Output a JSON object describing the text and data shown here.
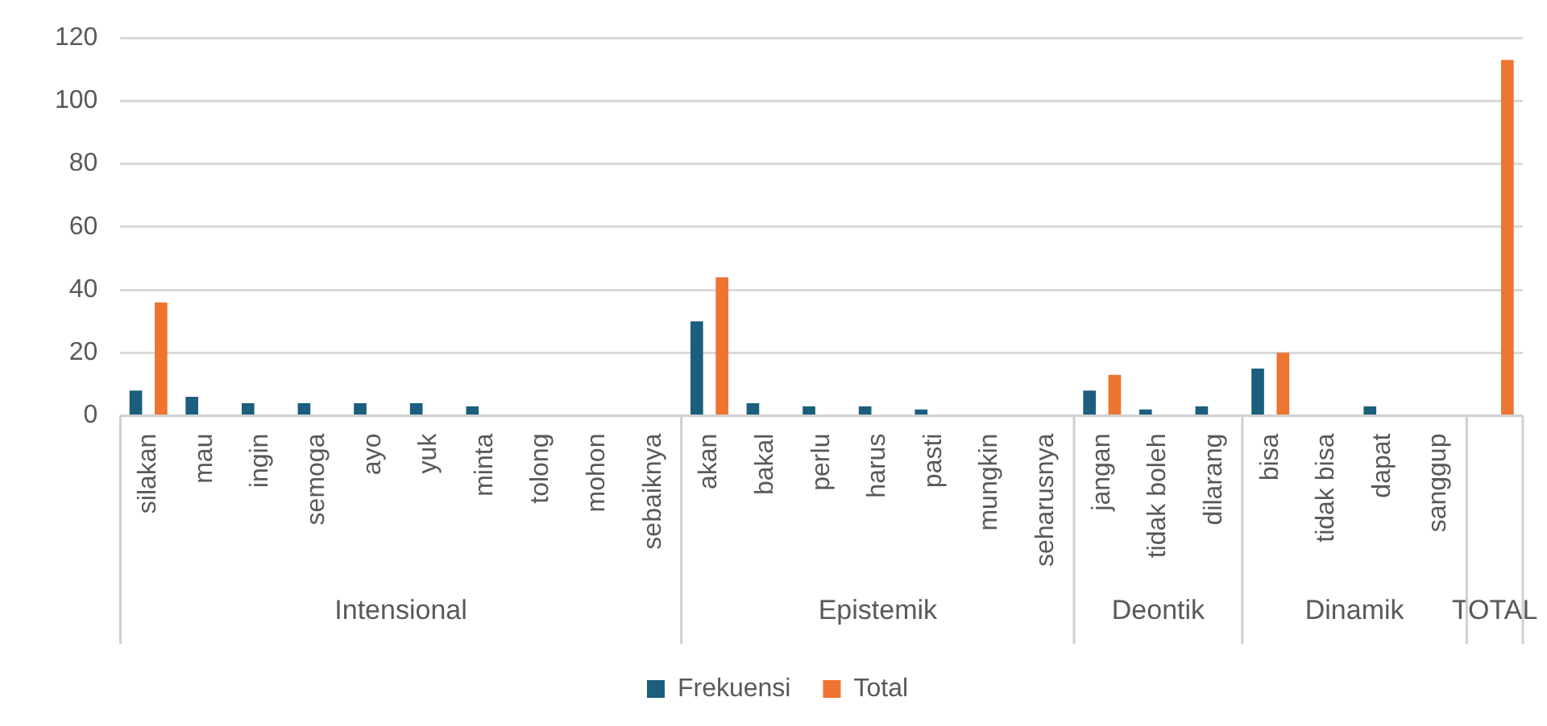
{
  "chart_data": {
    "type": "bar",
    "categories": [
      "silakan",
      "mau",
      "ingin",
      "semoga",
      "ayo",
      "yuk",
      "minta",
      "tolong",
      "mohon",
      "sebaiknya",
      "akan",
      "bakal",
      "perlu",
      "harus",
      "pasti",
      "mungkin",
      "seharusnya",
      "jangan",
      "tidak boleh",
      "dilarang",
      "bisa",
      "tidak bisa",
      "dapat",
      "sanggup",
      null
    ],
    "series": [
      {
        "name": "Frekuensi",
        "color": "#1b5e7e",
        "values": [
          8,
          6,
          4,
          4,
          4,
          4,
          3,
          0,
          0,
          0,
          30,
          4,
          3,
          3,
          2,
          0,
          0,
          8,
          2,
          3,
          15,
          0,
          3,
          0,
          null
        ]
      },
      {
        "name": "Total",
        "color": "#ed7431",
        "values": [
          36,
          null,
          null,
          null,
          null,
          null,
          null,
          null,
          null,
          null,
          44,
          null,
          null,
          null,
          null,
          null,
          null,
          13,
          null,
          null,
          20,
          null,
          null,
          null,
          113
        ]
      }
    ],
    "annotations": [
      "Intensional",
      "Epistemik",
      "Deontik",
      "Dinamik",
      "TOTAL"
    ],
    "ylim": [
      0,
      120
    ],
    "yticks": [
      0,
      20,
      40,
      60,
      80,
      100,
      120
    ],
    "grid": "y",
    "legend": "bottom"
  }
}
